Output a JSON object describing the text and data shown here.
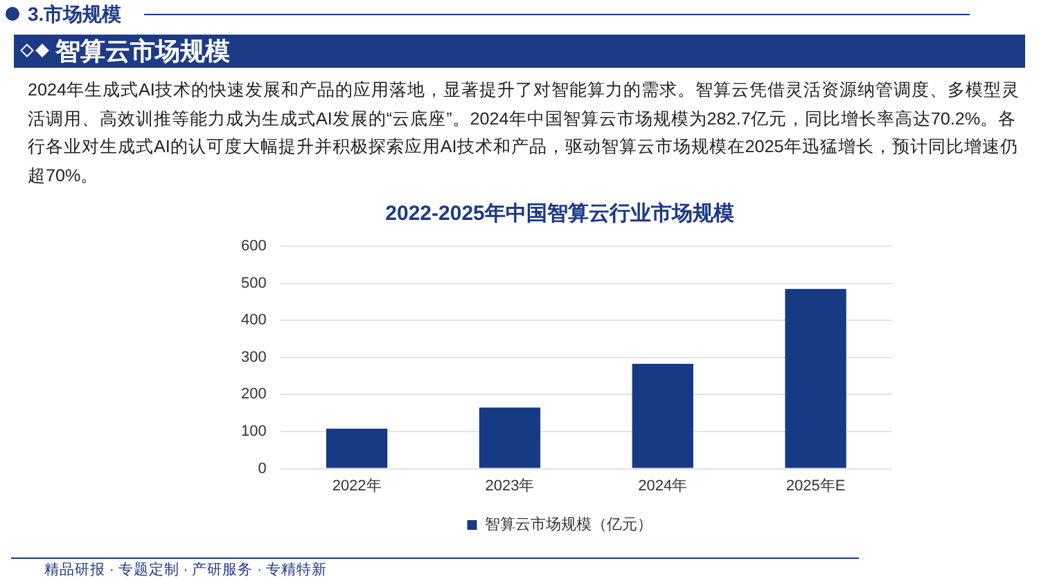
{
  "chart_data": {
    "type": "bar",
    "title": "2022-2025年中国智算云行业市场规模",
    "categories": [
      "2022年",
      "2023年",
      "2024年",
      "2025年E"
    ],
    "series": [
      {
        "name": "智算云市场规模（亿元）",
        "color": "#173a84",
        "values": [
          108,
          165,
          282.7,
          485
        ]
      }
    ],
    "ylim": [
      0,
      600
    ],
    "yticks": [
      0,
      100,
      200,
      300,
      400,
      500,
      600
    ],
    "grid": "y",
    "legend": "bottom",
    "annotations": [
      "3.市场规模",
      "智算云市场规模",
      "2024年生成式AI技术的快速发展和产品的应用落地，显著提升了对智能算力的需求。智算云凭借灵活资源纳管调度、多模型灵活调用、高效训推等能力成为生成式AI发展的“云底座”。2024年中国智算云市场规模为282.7亿元，同比增长率高达70.2%。各行各业对生成式AI的认可度大幅提升并积极探索应用AI技术和产品，驱动智算云市场规模在2025年迅猛增长，预计同比增速仍超70%。",
      "精品研报 · 专题定制 · 产研服务 · 专精特新"
    ]
  }
}
